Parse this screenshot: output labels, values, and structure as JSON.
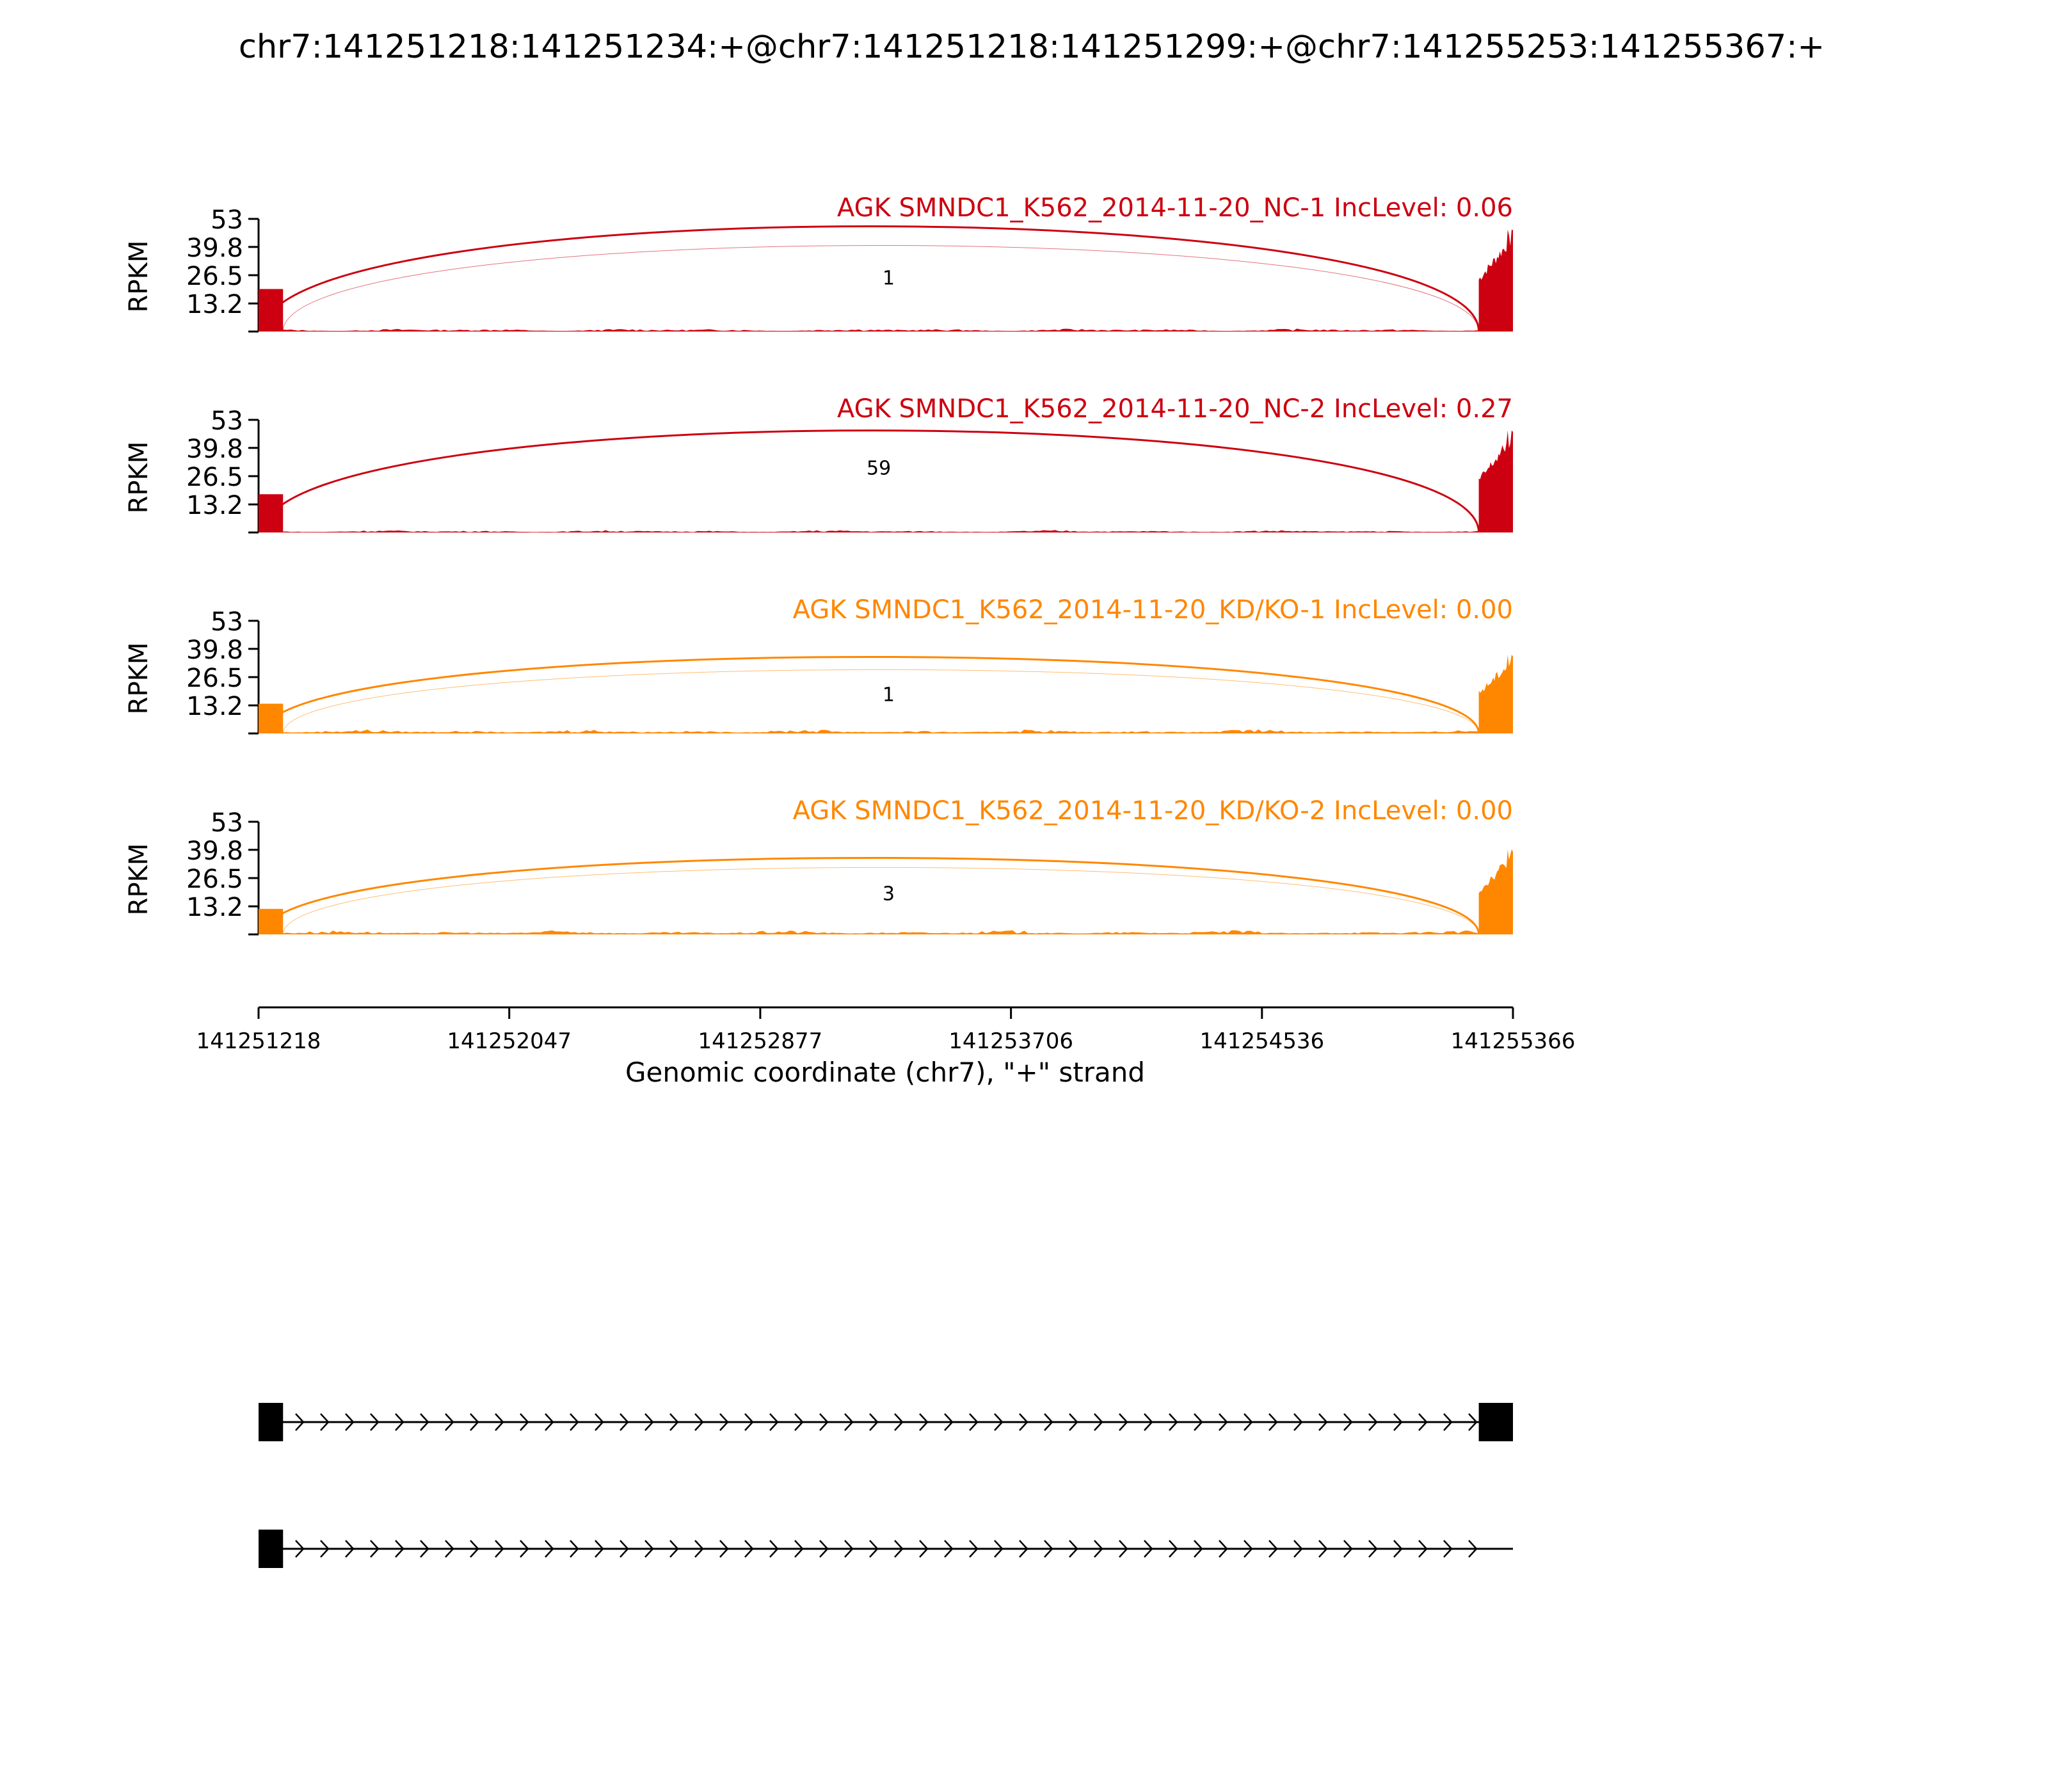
{
  "chart_data": {
    "type": "area",
    "title": "chr7:141251218:141251234:+@chr7:141251218:141251299:+@chr7:141255253:141255367:+",
    "xlabel": "Genomic coordinate (chr7), \"+\" strand",
    "ylabel": "RPKM",
    "xlim": [
      141251218,
      141255366
    ],
    "x_ticks": [
      "141251218",
      "141252047",
      "141252877",
      "141253706",
      "141254536",
      "141255366"
    ],
    "ylim": [
      0,
      53
    ],
    "y_ticks": [
      "13.2",
      "26.5",
      "39.8",
      "53"
    ],
    "exons": [
      {
        "start": 141251218,
        "end": 141251299
      },
      {
        "start": 141255253,
        "end": 141255366
      }
    ],
    "tracks": [
      {
        "label": "AGK SMNDC1_K562_2014-11-20_NC-1 IncLevel: 0.06",
        "color": "#cc0010",
        "coverage_exon_start_max": 20,
        "coverage_exon_end_max": 48,
        "intron_coverage_max": 1.5,
        "junctions": [
          {
            "start": 141251234,
            "end": 141255253,
            "count": "--",
            "height": 33
          },
          {
            "start": 141251299,
            "end": 141255253,
            "count": "1",
            "height": 27
          }
        ]
      },
      {
        "label": "AGK SMNDC1_K562_2014-11-20_NC-2 IncLevel: 0.27",
        "color": "#cc0010",
        "coverage_exon_start_max": 18,
        "coverage_exon_end_max": 48,
        "intron_coverage_max": 1.2,
        "junctions": [
          {
            "start": 141251234,
            "end": 141255253,
            "count": "59",
            "height": 32
          }
        ]
      },
      {
        "label": "AGK SMNDC1_K562_2014-11-20_KD/KO-1 IncLevel: 0.00",
        "color": "#ff8700",
        "coverage_exon_start_max": 14,
        "coverage_exon_end_max": 37,
        "intron_coverage_max": 2.0,
        "junctions": [
          {
            "start": 141251234,
            "end": 141255253,
            "count": "",
            "height": 24
          },
          {
            "start": 141251299,
            "end": 141255253,
            "count": "1",
            "height": 20
          }
        ]
      },
      {
        "label": "AGK SMNDC1_K562_2014-11-20_KD/KO-2 IncLevel: 0.00",
        "color": "#ff8700",
        "coverage_exon_start_max": 12,
        "coverage_exon_end_max": 40,
        "intron_coverage_max": 2.0,
        "junctions": [
          {
            "start": 141251234,
            "end": 141255253,
            "count": "",
            "height": 24
          },
          {
            "start": 141251299,
            "end": 141255253,
            "count": "3",
            "height": 21
          }
        ]
      }
    ],
    "isoforms": [
      {
        "exons": [
          [
            141251218,
            141251299
          ],
          [
            141255253,
            141255366
          ]
        ]
      },
      {
        "exons": [
          [
            141251218,
            141251299
          ]
        ]
      }
    ]
  }
}
